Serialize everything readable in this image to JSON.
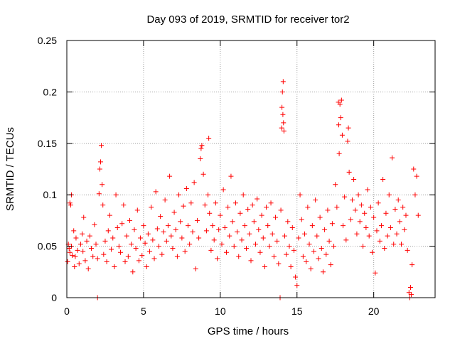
{
  "chart_data": {
    "type": "scatter",
    "title": "Day 093 of 2019, SRMTID for receiver tor2",
    "xlabel": "GPS time / hours",
    "ylabel": "SRMTID / TECUs",
    "xlim": [
      0,
      24
    ],
    "ylim": [
      0,
      0.25
    ],
    "xticks": [
      0,
      5,
      10,
      15,
      20
    ],
    "yticks": [
      0,
      0.05,
      0.1,
      0.15,
      0.2,
      0.25
    ],
    "x_tick_labels": [
      "0",
      "5",
      "10",
      "15",
      "20"
    ],
    "y_tick_labels": [
      "0",
      "0.05",
      "0.1",
      "0.15",
      "0.2",
      "0.25"
    ],
    "grid": true,
    "marker": "plus",
    "color": "#ff0000",
    "series": [
      {
        "name": "SRMTID",
        "points": [
          [
            0.05,
            0.035
          ],
          [
            0.1,
            0.052
          ],
          [
            0.15,
            0.048
          ],
          [
            0.2,
            0.044
          ],
          [
            0.2,
            0.092
          ],
          [
            0.25,
            0.09
          ],
          [
            0.3,
            0.1
          ],
          [
            0.3,
            0.05
          ],
          [
            0.35,
            0.041
          ],
          [
            0.45,
            0.065
          ],
          [
            0.5,
            0.03
          ],
          [
            0.55,
            0.04
          ],
          [
            0.6,
            0.058
          ],
          [
            0.7,
            0.046
          ],
          [
            0.8,
            0.033
          ],
          [
            0.9,
            0.052
          ],
          [
            1.0,
            0.062
          ],
          [
            1.05,
            0.045
          ],
          [
            1.1,
            0.078
          ],
          [
            1.2,
            0.036
          ],
          [
            1.3,
            0.055
          ],
          [
            1.4,
            0.028
          ],
          [
            1.5,
            0.06
          ],
          [
            1.6,
            0.048
          ],
          [
            1.7,
            0.04
          ],
          [
            1.8,
            0.071
          ],
          [
            1.9,
            0.052
          ],
          [
            2.0,
            0.0
          ],
          [
            2.0,
            0.038
          ],
          [
            2.1,
            0.101
          ],
          [
            2.15,
            0.125
          ],
          [
            2.2,
            0.132
          ],
          [
            2.25,
            0.148
          ],
          [
            2.3,
            0.11
          ],
          [
            2.35,
            0.09
          ],
          [
            2.4,
            0.042
          ],
          [
            2.5,
            0.055
          ],
          [
            2.6,
            0.035
          ],
          [
            2.7,
            0.065
          ],
          [
            2.8,
            0.08
          ],
          [
            2.9,
            0.047
          ],
          [
            3.0,
            0.058
          ],
          [
            3.1,
            0.03
          ],
          [
            3.2,
            0.1
          ],
          [
            3.3,
            0.068
          ],
          [
            3.4,
            0.05
          ],
          [
            3.5,
            0.044
          ],
          [
            3.6,
            0.072
          ],
          [
            3.7,
            0.09
          ],
          [
            3.8,
            0.035
          ],
          [
            3.9,
            0.06
          ],
          [
            4.0,
            0.04
          ],
          [
            4.1,
            0.075
          ],
          [
            4.2,
            0.052
          ],
          [
            4.3,
            0.025
          ],
          [
            4.4,
            0.066
          ],
          [
            4.5,
            0.048
          ],
          [
            4.6,
            0.085
          ],
          [
            4.7,
            0.036
          ],
          [
            4.8,
            0.058
          ],
          [
            4.9,
            0.041
          ],
          [
            5.0,
            0.07
          ],
          [
            5.1,
            0.053
          ],
          [
            5.2,
            0.03
          ],
          [
            5.3,
            0.062
          ],
          [
            5.4,
            0.045
          ],
          [
            5.5,
            0.088
          ],
          [
            5.6,
            0.056
          ],
          [
            5.7,
            0.038
          ],
          [
            5.8,
            0.103
          ],
          [
            5.9,
            0.067
          ],
          [
            6.0,
            0.05
          ],
          [
            6.1,
            0.079
          ],
          [
            6.2,
            0.042
          ],
          [
            6.3,
            0.064
          ],
          [
            6.4,
            0.095
          ],
          [
            6.5,
            0.055
          ],
          [
            6.6,
            0.07
          ],
          [
            6.7,
            0.118
          ],
          [
            6.8,
            0.06
          ],
          [
            6.9,
            0.048
          ],
          [
            7.0,
            0.083
          ],
          [
            7.1,
            0.066
          ],
          [
            7.2,
            0.04
          ],
          [
            7.3,
            0.1
          ],
          [
            7.4,
            0.074
          ],
          [
            7.5,
            0.058
          ],
          [
            7.6,
            0.089
          ],
          [
            7.7,
            0.045
          ],
          [
            7.8,
            0.106
          ],
          [
            7.9,
            0.07
          ],
          [
            8.0,
            0.052
          ],
          [
            8.1,
            0.092
          ],
          [
            8.2,
            0.064
          ],
          [
            8.3,
            0.112
          ],
          [
            8.4,
            0.028
          ],
          [
            8.5,
            0.075
          ],
          [
            8.6,
            0.058
          ],
          [
            8.7,
            0.135
          ],
          [
            8.75,
            0.145
          ],
          [
            8.8,
            0.148
          ],
          [
            8.9,
            0.12
          ],
          [
            9.0,
            0.09
          ],
          [
            9.1,
            0.065
          ],
          [
            9.2,
            0.1
          ],
          [
            9.25,
            0.155
          ],
          [
            9.3,
            0.082
          ],
          [
            9.4,
            0.046
          ],
          [
            9.5,
            0.07
          ],
          [
            9.6,
            0.056
          ],
          [
            9.7,
            0.092
          ],
          [
            9.8,
            0.038
          ],
          [
            9.9,
            0.066
          ],
          [
            10.0,
            0.08
          ],
          [
            10.1,
            0.052
          ],
          [
            10.2,
            0.105
          ],
          [
            10.3,
            0.068
          ],
          [
            10.4,
            0.044
          ],
          [
            10.5,
            0.088
          ],
          [
            10.6,
            0.06
          ],
          [
            10.7,
            0.118
          ],
          [
            10.8,
            0.074
          ],
          [
            10.9,
            0.05
          ],
          [
            11.0,
            0.092
          ],
          [
            11.1,
            0.064
          ],
          [
            11.2,
            0.04
          ],
          [
            11.3,
            0.082
          ],
          [
            11.4,
            0.056
          ],
          [
            11.5,
            0.1
          ],
          [
            11.6,
            0.07
          ],
          [
            11.7,
            0.048
          ],
          [
            11.8,
            0.086
          ],
          [
            11.9,
            0.062
          ],
          [
            12.0,
            0.036
          ],
          [
            12.1,
            0.09
          ],
          [
            12.2,
            0.074
          ],
          [
            12.3,
            0.052
          ],
          [
            12.4,
            0.096
          ],
          [
            12.5,
            0.066
          ],
          [
            12.6,
            0.044
          ],
          [
            12.7,
            0.08
          ],
          [
            12.8,
            0.058
          ],
          [
            12.9,
            0.03
          ],
          [
            13.0,
            0.088
          ],
          [
            13.1,
            0.07
          ],
          [
            13.2,
            0.05
          ],
          [
            13.3,
            0.092
          ],
          [
            13.4,
            0.062
          ],
          [
            13.5,
            0.04
          ],
          [
            13.6,
            0.078
          ],
          [
            13.7,
            0.055
          ],
          [
            13.8,
            0.033
          ],
          [
            13.9,
            0.0
          ],
          [
            13.95,
            0.085
          ],
          [
            14.0,
            0.165
          ],
          [
            14.02,
            0.185
          ],
          [
            14.05,
            0.2
          ],
          [
            14.08,
            0.178
          ],
          [
            14.1,
            0.21
          ],
          [
            14.12,
            0.17
          ],
          [
            14.15,
            0.162
          ],
          [
            14.2,
            0.06
          ],
          [
            14.3,
            0.042
          ],
          [
            14.4,
            0.074
          ],
          [
            14.5,
            0.05
          ],
          [
            14.6,
            0.03
          ],
          [
            14.7,
            0.068
          ],
          [
            14.8,
            0.046
          ],
          [
            14.9,
            0.02
          ],
          [
            15.0,
            0.012
          ],
          [
            15.1,
            0.058
          ],
          [
            15.2,
            0.1
          ],
          [
            15.3,
            0.076
          ],
          [
            15.4,
            0.04
          ],
          [
            15.5,
            0.062
          ],
          [
            15.6,
            0.035
          ],
          [
            15.7,
            0.088
          ],
          [
            15.8,
            0.052
          ],
          [
            15.9,
            0.028
          ],
          [
            16.0,
            0.07
          ],
          [
            16.1,
            0.045
          ],
          [
            16.2,
            0.095
          ],
          [
            16.3,
            0.06
          ],
          [
            16.4,
            0.038
          ],
          [
            16.5,
            0.078
          ],
          [
            16.6,
            0.048
          ],
          [
            16.7,
            0.025
          ],
          [
            16.8,
            0.066
          ],
          [
            16.9,
            0.042
          ],
          [
            17.0,
            0.085
          ],
          [
            17.1,
            0.055
          ],
          [
            17.2,
            0.032
          ],
          [
            17.3,
            0.072
          ],
          [
            17.4,
            0.05
          ],
          [
            17.5,
            0.11
          ],
          [
            17.6,
            0.088
          ],
          [
            17.7,
            0.19
          ],
          [
            17.72,
            0.168
          ],
          [
            17.75,
            0.14
          ],
          [
            17.8,
            0.188
          ],
          [
            17.85,
            0.175
          ],
          [
            17.9,
            0.192
          ],
          [
            17.95,
            0.158
          ],
          [
            18.0,
            0.07
          ],
          [
            18.1,
            0.098
          ],
          [
            18.2,
            0.056
          ],
          [
            18.3,
            0.152
          ],
          [
            18.35,
            0.165
          ],
          [
            18.4,
            0.122
          ],
          [
            18.5,
            0.076
          ],
          [
            18.6,
            0.095
          ],
          [
            18.7,
            0.115
          ],
          [
            18.8,
            0.085
          ],
          [
            18.9,
            0.062
          ],
          [
            19.0,
            0.1
          ],
          [
            19.1,
            0.074
          ],
          [
            19.2,
            0.09
          ],
          [
            19.3,
            0.05
          ],
          [
            19.4,
            0.082
          ],
          [
            19.5,
            0.068
          ],
          [
            19.6,
            0.105
          ],
          [
            19.7,
            0.06
          ],
          [
            19.8,
            0.088
          ],
          [
            19.9,
            0.044
          ],
          [
            20.0,
            0.078
          ],
          [
            20.1,
            0.024
          ],
          [
            20.2,
            0.065
          ],
          [
            20.3,
            0.092
          ],
          [
            20.4,
            0.055
          ],
          [
            20.5,
            0.07
          ],
          [
            20.6,
            0.115
          ],
          [
            20.7,
            0.048
          ],
          [
            20.8,
            0.082
          ],
          [
            20.9,
            0.06
          ],
          [
            21.0,
            0.1
          ],
          [
            21.1,
            0.068
          ],
          [
            21.2,
            0.136
          ],
          [
            21.3,
            0.052
          ],
          [
            21.4,
            0.086
          ],
          [
            21.5,
            0.062
          ],
          [
            21.6,
            0.095
          ],
          [
            21.7,
            0.074
          ],
          [
            21.8,
            0.052
          ],
          [
            21.9,
            0.088
          ],
          [
            22.0,
            0.066
          ],
          [
            22.1,
            0.08
          ],
          [
            22.2,
            0.046
          ],
          [
            22.3,
            0.005
          ],
          [
            22.35,
            0.0
          ],
          [
            22.4,
            0.01
          ],
          [
            22.45,
            0.003
          ],
          [
            22.5,
            0.032
          ],
          [
            22.6,
            0.125
          ],
          [
            22.7,
            0.1
          ],
          [
            22.8,
            0.118
          ],
          [
            22.9,
            0.08
          ]
        ]
      }
    ]
  }
}
